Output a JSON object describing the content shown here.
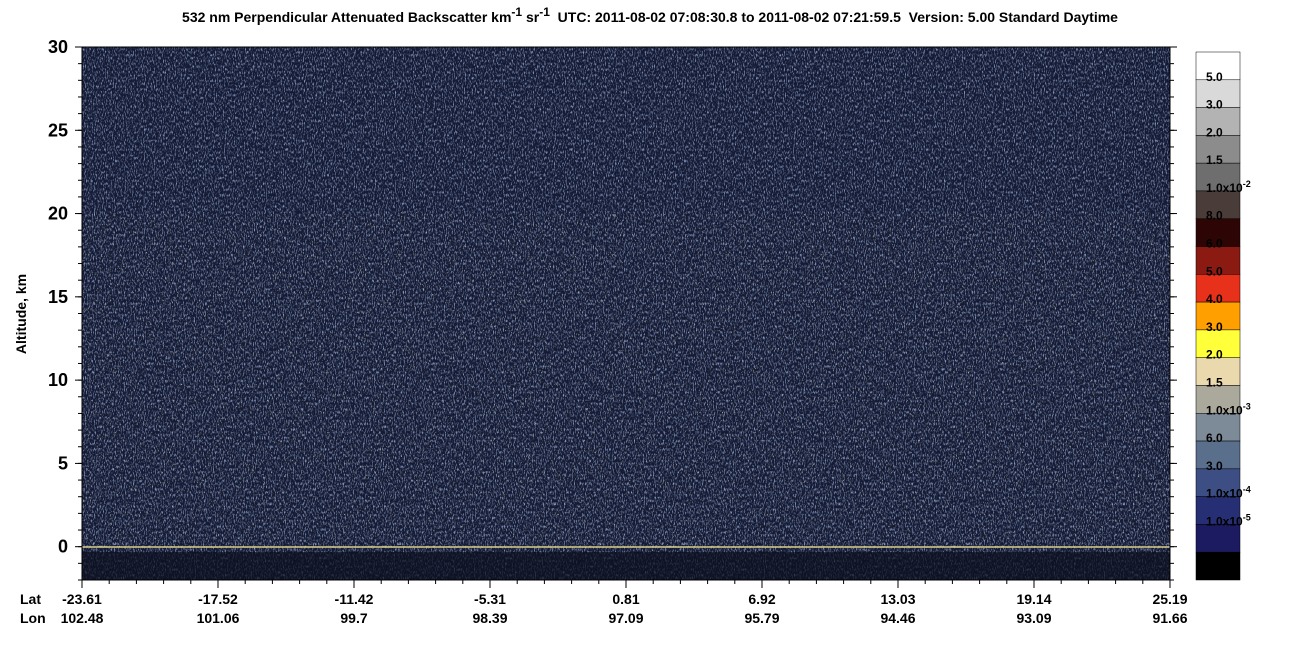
{
  "chart_data": {
    "type": "curtain",
    "title": {
      "main": "532 nm Perpendicular Attenuated Backscatter km",
      "sup1": "-1",
      "mid": " sr",
      "sup2": "-1",
      "rest": "  UTC: 2011-08-02 07:08:30.8 to 2011-08-02 07:21:59.5  Version: 5.00 Standard Daytime"
    },
    "y_label": "Altitude, km",
    "ylim": [
      -2,
      30
    ],
    "yticks": [
      0,
      5,
      10,
      15,
      20,
      25,
      30
    ],
    "x_row_labels": [
      "Lat",
      "Lon"
    ],
    "lat_ticks": [
      -23.61,
      -17.52,
      -11.42,
      -5.31,
      0.81,
      6.92,
      13.03,
      19.14,
      25.19
    ],
    "lon_ticks": [
      102.48,
      101.06,
      99.7,
      98.39,
      97.09,
      95.79,
      94.46,
      93.09,
      91.66
    ],
    "colorbar": {
      "colors": [
        "#ffffff",
        "#d9d9d9",
        "#b3b3b3",
        "#8c8c8c",
        "#6e6e6e",
        "#4a3c38",
        "#2e0505",
        "#8a1a12",
        "#e8311a",
        "#ff9f00",
        "#ffff3a",
        "#ead9ad",
        "#aaa99c",
        "#7d8a98",
        "#5a6f8c",
        "#3c4e83",
        "#272f74",
        "#1c1a60",
        "#000000"
      ],
      "labels": [
        {
          "text": "5.0"
        },
        {
          "text": "3.0"
        },
        {
          "text": "2.0"
        },
        {
          "text": "1.5"
        },
        {
          "text": "1.0x10",
          "sup": "-2"
        },
        {
          "text": "8.0"
        },
        {
          "text": "6.0"
        },
        {
          "text": "5.0"
        },
        {
          "text": "4.0"
        },
        {
          "text": "3.0"
        },
        {
          "text": "2.0"
        },
        {
          "text": "1.5"
        },
        {
          "text": "1.0x10",
          "sup": "-3"
        },
        {
          "text": "6.0"
        },
        {
          "text": "3.0"
        },
        {
          "text": "1.0x10",
          "sup": "-4"
        },
        {
          "text": "1.0x10",
          "sup": "-5"
        }
      ]
    }
  }
}
